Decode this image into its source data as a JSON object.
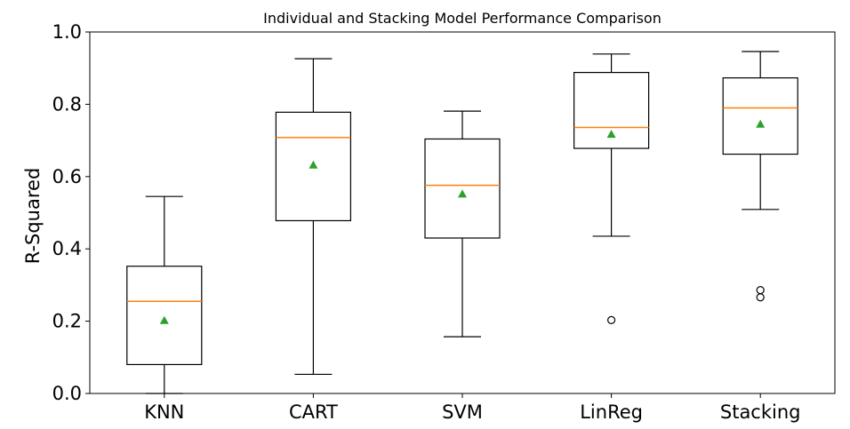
{
  "chart_data": {
    "type": "box",
    "title": "Individual and Stacking Model Performance Comparison",
    "xlabel": "",
    "ylabel": "R-Squared",
    "ylim": [
      0.0,
      1.0
    ],
    "yticks": [
      "0.0",
      "0.2",
      "0.4",
      "0.6",
      "0.8",
      "1.0"
    ],
    "grid": false,
    "categories": [
      "KNN",
      "CART",
      "SVM",
      "LinReg",
      "Stacking"
    ],
    "boxes": [
      {
        "name": "KNN",
        "whisker_low": 0.0,
        "q1": 0.08,
        "median": 0.255,
        "q3": 0.352,
        "whisker_high": 0.545,
        "mean": 0.202,
        "outliers": []
      },
      {
        "name": "CART",
        "whisker_low": 0.053,
        "q1": 0.478,
        "median": 0.708,
        "q3": 0.778,
        "whisker_high": 0.926,
        "mean": 0.632,
        "outliers": []
      },
      {
        "name": "SVM",
        "whisker_low": 0.157,
        "q1": 0.43,
        "median": 0.576,
        "q3": 0.704,
        "whisker_high": 0.781,
        "mean": 0.552,
        "outliers": []
      },
      {
        "name": "LinReg",
        "whisker_low": 0.435,
        "q1": 0.678,
        "median": 0.736,
        "q3": 0.888,
        "whisker_high": 0.939,
        "mean": 0.717,
        "outliers": [
          0.203
        ]
      },
      {
        "name": "Stacking",
        "whisker_low": 0.509,
        "q1": 0.662,
        "median": 0.79,
        "q3": 0.873,
        "whisker_high": 0.946,
        "mean": 0.745,
        "outliers": [
          0.286,
          0.266
        ]
      }
    ],
    "colors": {
      "median": "#ff7f0e",
      "mean": "#2ca02c",
      "box": "#000000"
    }
  }
}
